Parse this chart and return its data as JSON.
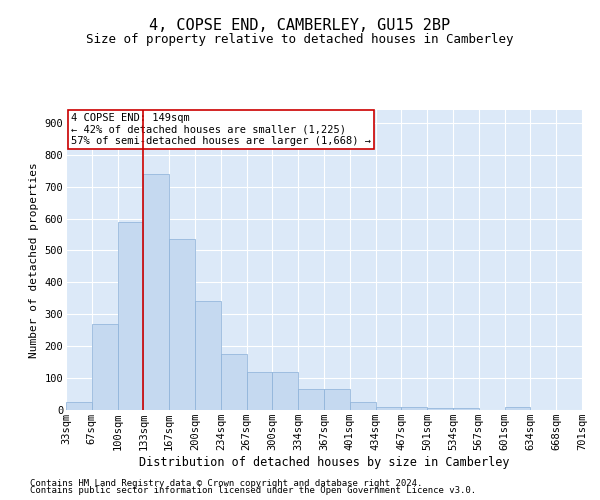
{
  "title": "4, COPSE END, CAMBERLEY, GU15 2BP",
  "subtitle": "Size of property relative to detached houses in Camberley",
  "xlabel": "Distribution of detached houses by size in Camberley",
  "ylabel": "Number of detached properties",
  "footnote1": "Contains HM Land Registry data © Crown copyright and database right 2024.",
  "footnote2": "Contains public sector information licensed under the Open Government Licence v3.0.",
  "bar_values": [
    25,
    270,
    590,
    740,
    535,
    340,
    175,
    120,
    120,
    65,
    65,
    25,
    10,
    10,
    5,
    5,
    0,
    10,
    0,
    0
  ],
  "bin_labels": [
    "33sqm",
    "67sqm",
    "100sqm",
    "133sqm",
    "167sqm",
    "200sqm",
    "234sqm",
    "267sqm",
    "300sqm",
    "334sqm",
    "367sqm",
    "401sqm",
    "434sqm",
    "467sqm",
    "501sqm",
    "534sqm",
    "567sqm",
    "601sqm",
    "634sqm",
    "668sqm",
    "701sqm"
  ],
  "bar_color": "#c5d9f0",
  "bar_edge_color": "#8ab0d8",
  "vline_x": 3,
  "vline_color": "#cc0000",
  "annotation_text": "4 COPSE END: 149sqm\n← 42% of detached houses are smaller (1,225)\n57% of semi-detached houses are larger (1,668) →",
  "annotation_box_color": "#ffffff",
  "annotation_box_edge": "#cc0000",
  "ylim": [
    0,
    940
  ],
  "yticks": [
    0,
    100,
    200,
    300,
    400,
    500,
    600,
    700,
    800,
    900
  ],
  "plot_bg": "#dce9f8",
  "fig_bg": "#ffffff",
  "title_fontsize": 11,
  "subtitle_fontsize": 9,
  "xlabel_fontsize": 8.5,
  "ylabel_fontsize": 8,
  "tick_fontsize": 7.5,
  "annot_fontsize": 7.5,
  "footnote_fontsize": 6.5
}
